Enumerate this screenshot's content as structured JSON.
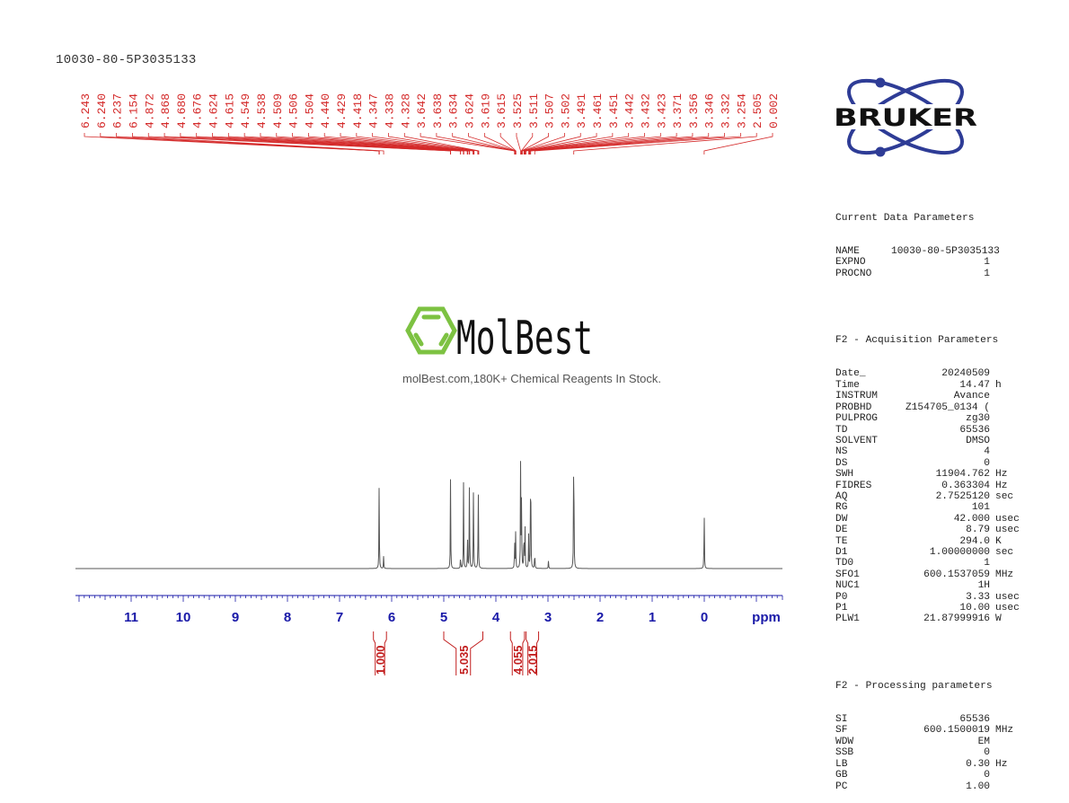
{
  "header": {
    "sample_name": "10030-80-5P3035133"
  },
  "watermark": {
    "brand": "MolBest",
    "tagline": "molBest.com,180K+ Chemical Reagents In Stock.",
    "brand_color": "#7dc242"
  },
  "logo": {
    "text": "BRUKER",
    "orbit_color": "#2e3c96"
  },
  "colors": {
    "peak_labels": "#d42a2a",
    "axis": "#1a1aa8",
    "spectrum": "#555555",
    "integrals": "#c21f1f"
  },
  "chart_data": {
    "type": "line",
    "title": "10030-80-5P3035133",
    "xlabel": "ppm",
    "ylabel": "",
    "xlim": [
      12.1,
      -1.5
    ],
    "x_reversed": true,
    "grid": false,
    "x_ticks": [
      "11",
      "10",
      "9",
      "8",
      "7",
      "6",
      "5",
      "4",
      "3",
      "2",
      "1",
      "0"
    ],
    "x_tick_values": [
      11,
      10,
      9,
      8,
      7,
      6,
      5,
      4,
      3,
      2,
      1,
      0
    ],
    "peak_labels": [
      "6.243",
      "6.240",
      "6.237",
      "6.154",
      "4.872",
      "4.868",
      "4.680",
      "4.676",
      "4.624",
      "4.615",
      "4.549",
      "4.538",
      "4.509",
      "4.506",
      "4.504",
      "4.440",
      "4.429",
      "4.418",
      "4.347",
      "4.338",
      "4.328",
      "3.642",
      "3.638",
      "3.634",
      "3.624",
      "3.619",
      "3.615",
      "3.525",
      "3.511",
      "3.507",
      "3.502",
      "3.491",
      "3.461",
      "3.451",
      "3.442",
      "3.432",
      "3.423",
      "3.371",
      "3.356",
      "3.346",
      "3.332",
      "3.254",
      "2.505",
      "0.002"
    ],
    "peaks": [
      {
        "ppm": 6.24,
        "height": 0.54
      },
      {
        "ppm": 6.154,
        "height": 0.08
      },
      {
        "ppm": 4.87,
        "height": 0.55
      },
      {
        "ppm": 4.678,
        "height": 0.08
      },
      {
        "ppm": 4.62,
        "height": 0.53
      },
      {
        "ppm": 4.545,
        "height": 0.2
      },
      {
        "ppm": 4.507,
        "height": 0.56
      },
      {
        "ppm": 4.429,
        "height": 0.57
      },
      {
        "ppm": 4.338,
        "height": 0.53
      },
      {
        "ppm": 3.64,
        "height": 0.18
      },
      {
        "ppm": 3.62,
        "height": 0.22
      },
      {
        "ppm": 3.525,
        "height": 0.65
      },
      {
        "ppm": 3.507,
        "height": 0.45
      },
      {
        "ppm": 3.461,
        "height": 0.28
      },
      {
        "ppm": 3.44,
        "height": 0.24
      },
      {
        "ppm": 3.371,
        "height": 0.2
      },
      {
        "ppm": 3.332,
        "height": 0.87
      },
      {
        "ppm": 3.254,
        "height": 0.12
      },
      {
        "ppm": 2.99,
        "height": 0.05
      },
      {
        "ppm": 2.505,
        "height": 1.0
      },
      {
        "ppm": 0.002,
        "height": 0.38
      }
    ],
    "integrals": [
      {
        "from": 6.35,
        "to": 6.1,
        "value": "1.000"
      },
      {
        "from": 5.0,
        "to": 4.25,
        "value": "5.035"
      },
      {
        "from": 3.72,
        "to": 3.45,
        "value": "4.055"
      },
      {
        "from": 3.42,
        "to": 3.18,
        "value": "2.015"
      }
    ]
  },
  "parameters": {
    "current": {
      "title": "Current Data Parameters",
      "rows": [
        {
          "k": "NAME",
          "v": "10030-80-5P3035133",
          "u": ""
        },
        {
          "k": "EXPNO",
          "v": "1",
          "u": ""
        },
        {
          "k": "PROCNO",
          "v": "1",
          "u": ""
        }
      ]
    },
    "acquisition": {
      "title": "F2 - Acquisition Parameters",
      "rows": [
        {
          "k": "Date_",
          "v": "20240509",
          "u": ""
        },
        {
          "k": "Time",
          "v": "14.47",
          "u": "h"
        },
        {
          "k": "INSTRUM",
          "v": "Avance",
          "u": ""
        },
        {
          "k": "PROBHD",
          "v": "Z154705_0134 (",
          "u": ""
        },
        {
          "k": "PULPROG",
          "v": "zg30",
          "u": ""
        },
        {
          "k": "TD",
          "v": "65536",
          "u": ""
        },
        {
          "k": "SOLVENT",
          "v": "DMSO",
          "u": ""
        },
        {
          "k": "NS",
          "v": "4",
          "u": ""
        },
        {
          "k": "DS",
          "v": "0",
          "u": ""
        },
        {
          "k": "SWH",
          "v": "11904.762",
          "u": "Hz"
        },
        {
          "k": "FIDRES",
          "v": "0.363304",
          "u": "Hz"
        },
        {
          "k": "AQ",
          "v": "2.7525120",
          "u": "sec"
        },
        {
          "k": "RG",
          "v": "101",
          "u": ""
        },
        {
          "k": "DW",
          "v": "42.000",
          "u": "usec"
        },
        {
          "k": "DE",
          "v": "8.79",
          "u": "usec"
        },
        {
          "k": "TE",
          "v": "294.0",
          "u": "K"
        },
        {
          "k": "D1",
          "v": "1.00000000",
          "u": "sec"
        },
        {
          "k": "TD0",
          "v": "1",
          "u": ""
        },
        {
          "k": "SFO1",
          "v": "600.1537059",
          "u": "MHz"
        },
        {
          "k": "NUC1",
          "v": "1H",
          "u": ""
        },
        {
          "k": "P0",
          "v": "3.33",
          "u": "usec"
        },
        {
          "k": "P1",
          "v": "10.00",
          "u": "usec"
        },
        {
          "k": "PLW1",
          "v": "21.87999916",
          "u": "W"
        }
      ]
    },
    "processing": {
      "title": "F2 - Processing parameters",
      "rows": [
        {
          "k": "SI",
          "v": "65536",
          "u": ""
        },
        {
          "k": "SF",
          "v": "600.1500019",
          "u": "MHz"
        },
        {
          "k": "WDW",
          "v": "EM",
          "u": ""
        },
        {
          "k": "SSB",
          "v": "0",
          "u": ""
        },
        {
          "k": "LB",
          "v": "0.30",
          "u": "Hz"
        },
        {
          "k": "GB",
          "v": "0",
          "u": ""
        },
        {
          "k": "PC",
          "v": "1.00",
          "u": ""
        }
      ]
    }
  }
}
